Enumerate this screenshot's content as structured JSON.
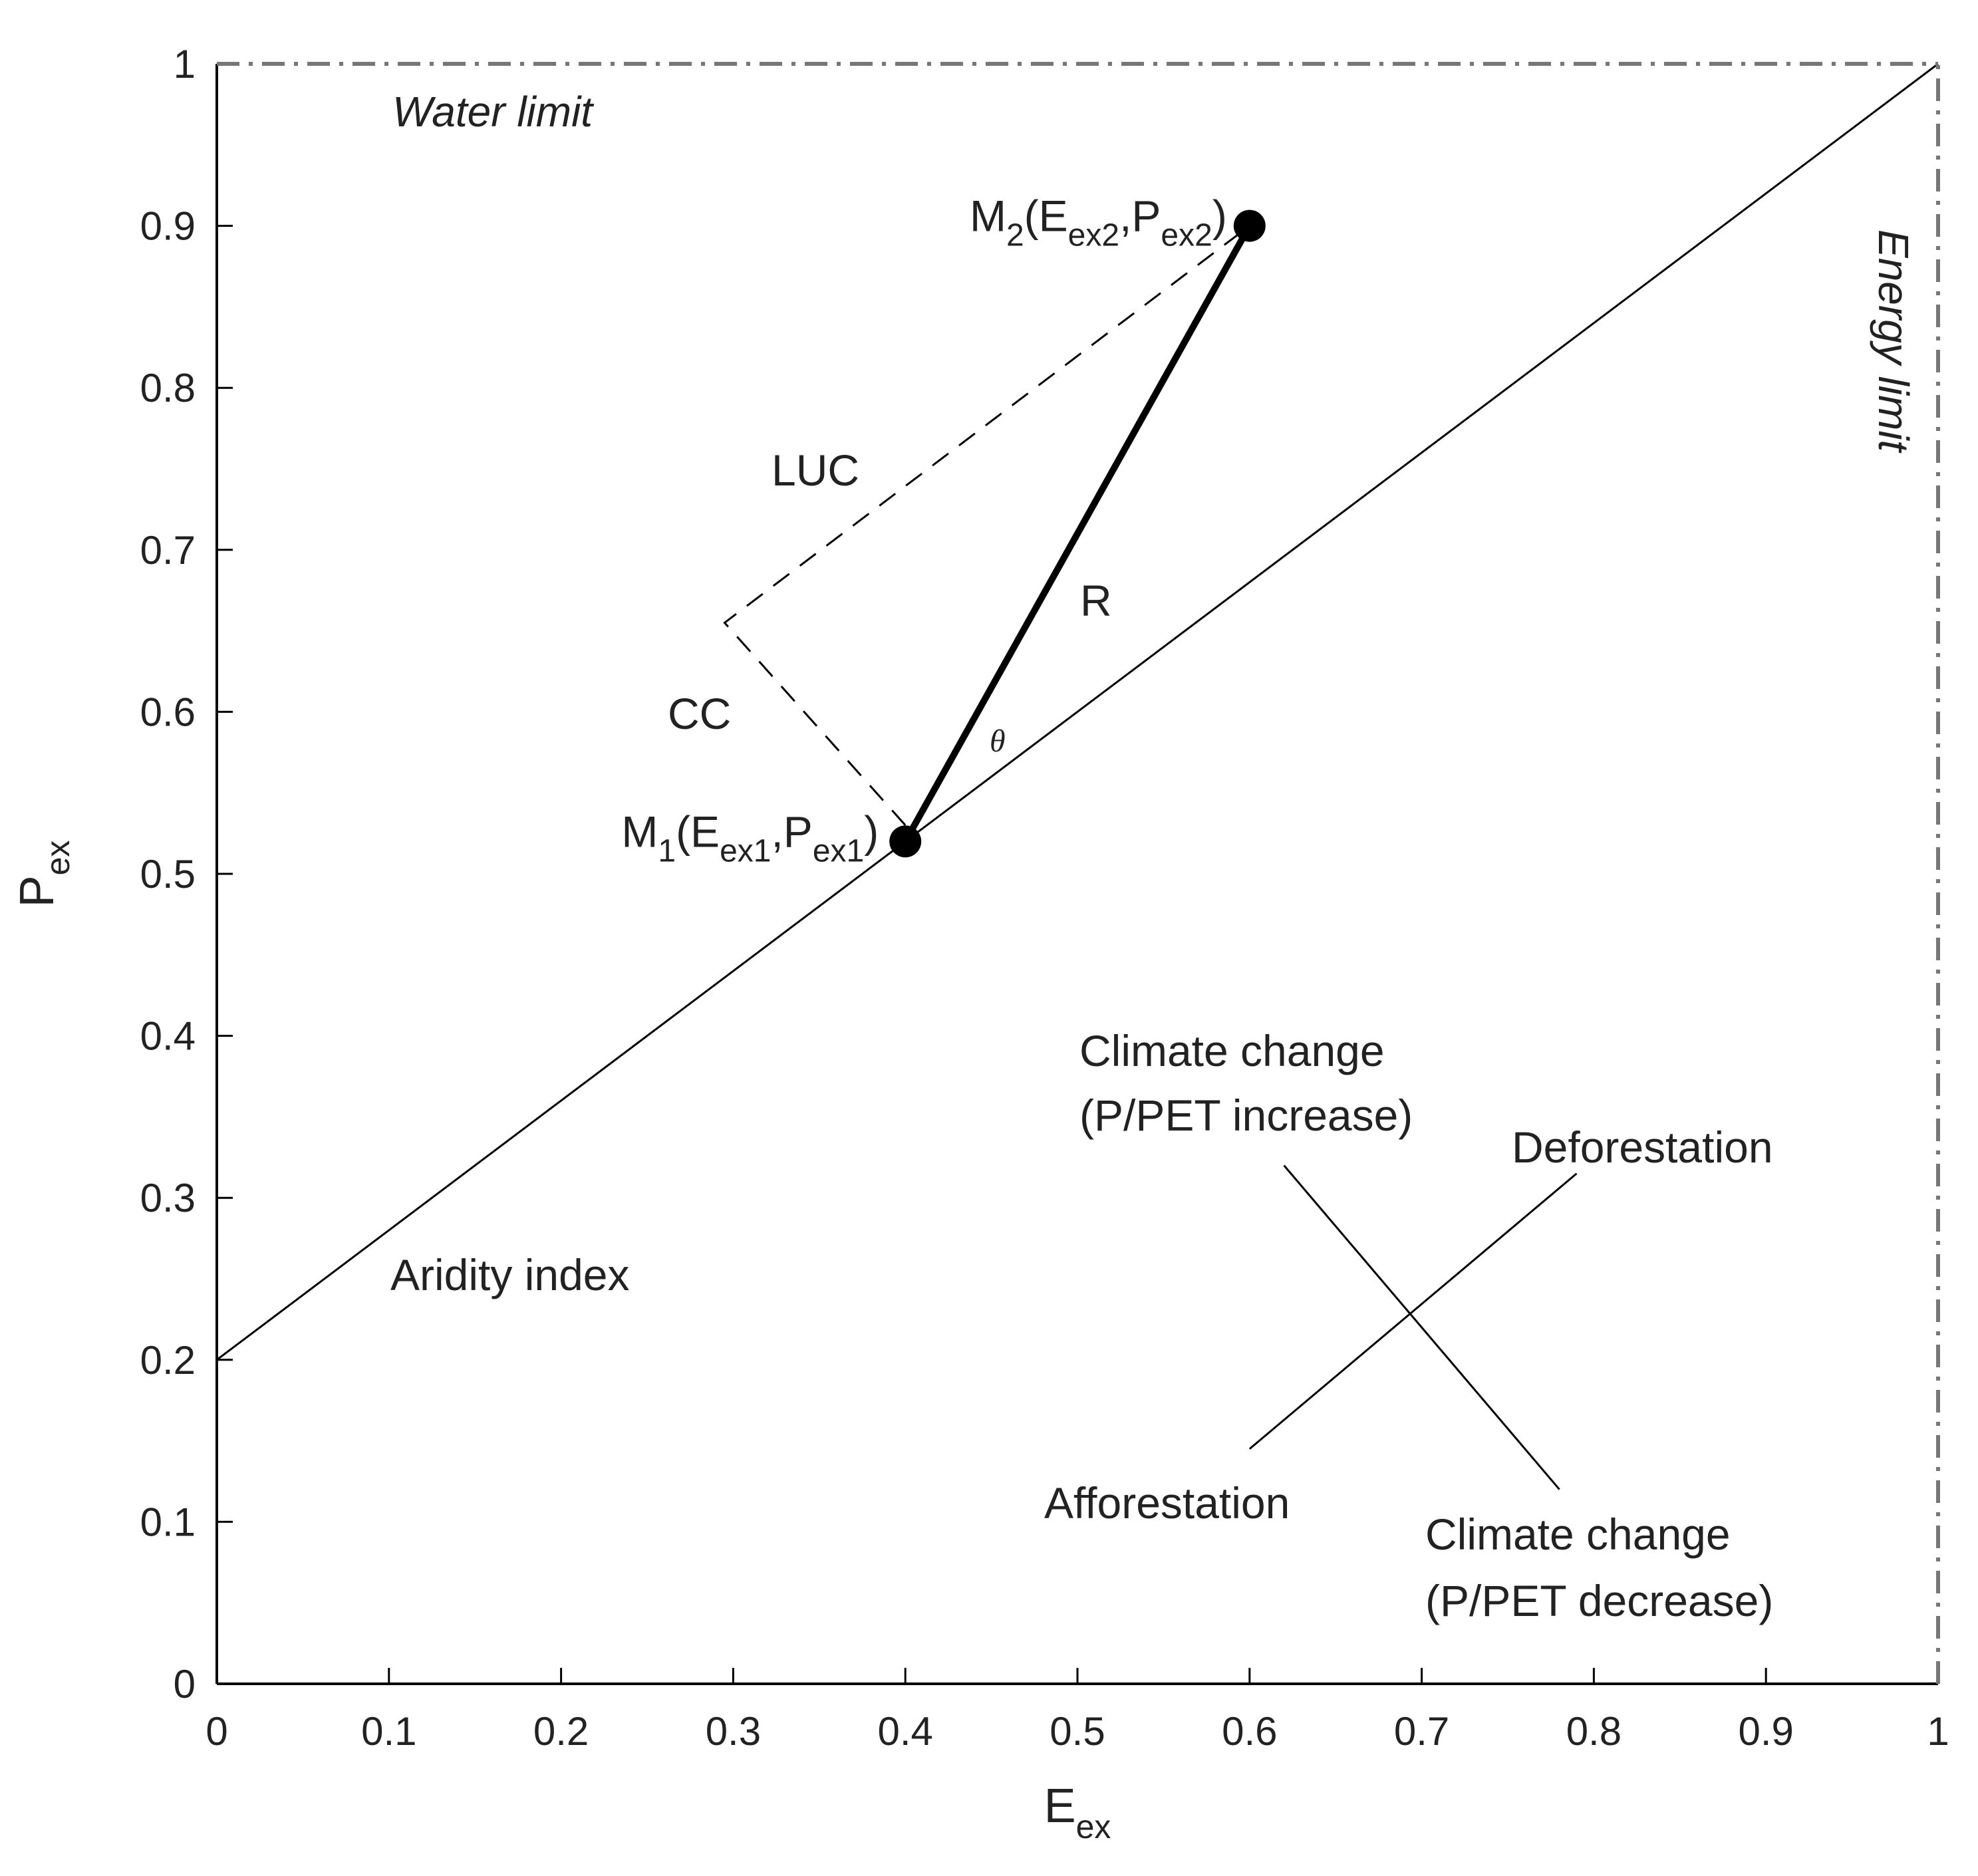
{
  "chart_data": {
    "type": "line",
    "xlabel": {
      "main": "E",
      "sub": "ex"
    },
    "ylabel": {
      "main": "P",
      "sub": "ex"
    },
    "xlim": [
      0,
      1
    ],
    "ylim": [
      0,
      1
    ],
    "x_ticks": [
      0,
      0.1,
      0.2,
      0.3,
      0.4,
      0.5,
      0.6,
      0.7,
      0.8,
      0.9,
      1
    ],
    "x_tick_labels": [
      "0",
      "0.1",
      "0.2",
      "0.3",
      "0.4",
      "0.5",
      "0.6",
      "0.7",
      "0.8",
      "0.9",
      "1"
    ],
    "y_ticks": [
      0,
      0.1,
      0.2,
      0.3,
      0.4,
      0.5,
      0.6,
      0.7,
      0.8,
      0.9,
      1
    ],
    "y_tick_labels": [
      "0",
      "0.1",
      "0.2",
      "0.3",
      "0.4",
      "0.5",
      "0.6",
      "0.7",
      "0.8",
      "0.9",
      "1"
    ],
    "grid": false,
    "series": [
      {
        "name": "Aridity index",
        "style": "solid-thin",
        "x": [
          0,
          1
        ],
        "y": [
          0.2,
          1
        ]
      },
      {
        "name": "R",
        "style": "solid-thick",
        "x": [
          0.4,
          0.6
        ],
        "y": [
          0.52,
          0.9
        ]
      },
      {
        "name": "CC-LUC path",
        "style": "dashed",
        "x": [
          0.4,
          0.295,
          0.6
        ],
        "y": [
          0.53,
          0.655,
          0.9
        ]
      },
      {
        "name": "Water limit",
        "style": "dash-dot",
        "x": [
          0,
          1
        ],
        "y": [
          1,
          1
        ]
      },
      {
        "name": "Energy limit",
        "style": "dash-dot",
        "x": [
          1,
          1
        ],
        "y": [
          0,
          1
        ]
      },
      {
        "name": "Deforestation-Afforestation direction",
        "style": "solid-thin",
        "x": [
          0.6,
          0.79
        ],
        "y": [
          0.145,
          0.315
        ]
      },
      {
        "name": "Climate change direction",
        "style": "solid-thin",
        "x": [
          0.62,
          0.78
        ],
        "y": [
          0.32,
          0.12
        ]
      }
    ],
    "points": [
      {
        "name": "M1",
        "x": 0.4,
        "y": 0.52,
        "label_main": "M",
        "label_idx": "1",
        "label_open": "(E",
        "label_sub1": "ex1",
        "label_comma": ",P",
        "label_sub2": "ex1",
        "label_close": ")"
      },
      {
        "name": "M2",
        "x": 0.6,
        "y": 0.9,
        "label_main": "M",
        "label_idx": "2",
        "label_open": "(E",
        "label_sub1": "ex2",
        "label_comma": ",P",
        "label_sub2": "ex2",
        "label_close": ")"
      }
    ],
    "annotations": {
      "water_limit": "Water limit",
      "energy_limit": "Energy limit",
      "aridity_index": "Aridity index",
      "luc": "LUC",
      "cc": "CC",
      "r": "R",
      "theta": "θ",
      "climate_increase_1": "Climate change",
      "climate_increase_2": "(P/PET increase)",
      "climate_decrease_1": "Climate change",
      "climate_decrease_2": "(P/PET decrease)",
      "deforestation": "Deforestation",
      "afforestation": "Afforestation"
    },
    "colors": {
      "line": "#000000",
      "limit": "#777777",
      "text": "#222222"
    }
  }
}
